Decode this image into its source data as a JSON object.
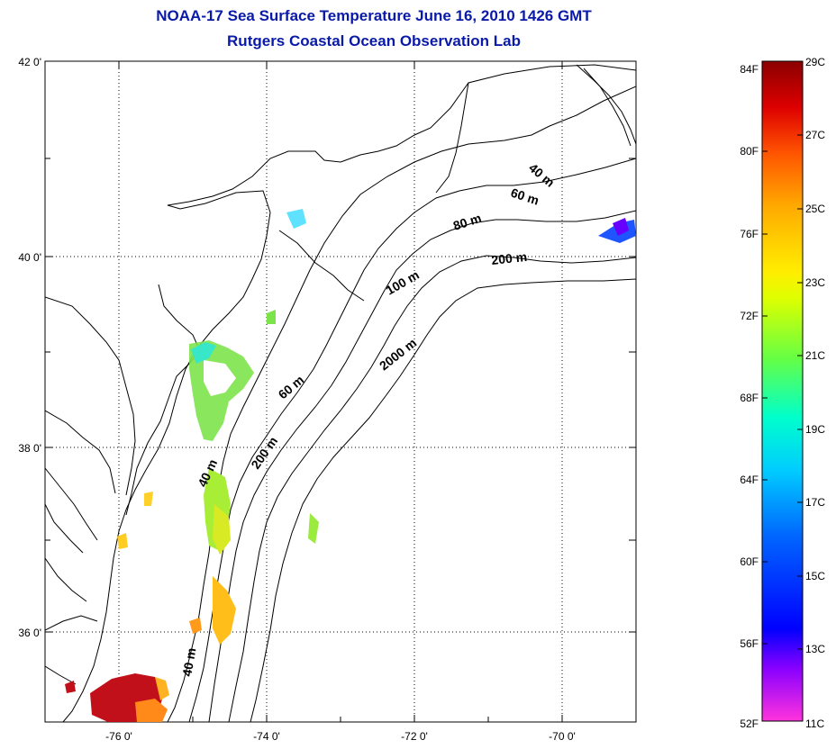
{
  "title_line1": "NOAA-17 Sea Surface Temperature June 16, 2010 1426 GMT",
  "title_line2": "Rutgers Coastal Ocean Observation Lab",
  "map": {
    "lon_range": [
      -77.0,
      -69.0
    ],
    "lat_range": [
      35.0,
      42.0
    ],
    "lon_ticks": [
      "-76 0'",
      "-74 0'",
      "-72 0'",
      "-70 0'"
    ],
    "lat_ticks": [
      "42 0'",
      "40 0'",
      "38 0'",
      "36 0'"
    ],
    "contour_labels": [
      "40 m",
      "60 m",
      "80 m",
      "200 m",
      "100 m",
      "2000 m",
      "60 m",
      "200 m",
      "40 m",
      "40 m"
    ],
    "grid": "dotted"
  },
  "colorbar": {
    "fahrenheit_labels": [
      "84F",
      "80F",
      "76F",
      "72F",
      "68F",
      "64F",
      "60F",
      "56F",
      "52F"
    ],
    "celsius_labels": [
      "29C",
      "27C",
      "25C",
      "23C",
      "21C",
      "19C",
      "17C",
      "15C",
      "13C",
      "11C"
    ],
    "colors": [
      "#ff33dd",
      "#8800ff",
      "#0000ff",
      "#0066ff",
      "#00ccff",
      "#00ffcc",
      "#66ff44",
      "#ddff00",
      "#ffee00",
      "#ffaa00",
      "#ff5500",
      "#dd0000",
      "#8b0000"
    ]
  }
}
